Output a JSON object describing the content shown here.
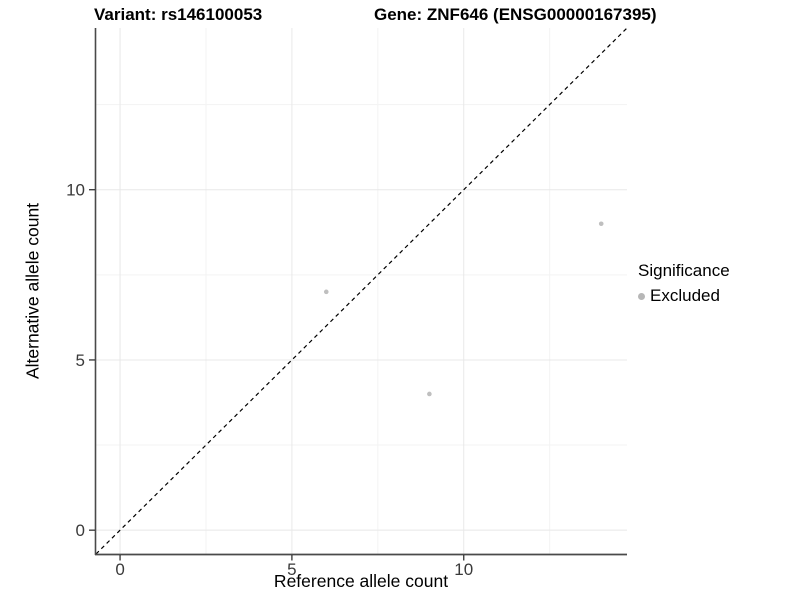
{
  "chart_data": {
    "type": "scatter",
    "title_left": "Variant: rs146100053",
    "title_right": "Gene: ZNF646 (ENSG00000167395)",
    "xlabel": "Reference allele count",
    "ylabel": "Alternative allele count",
    "xlim": [
      -0.7,
      14.75
    ],
    "ylim": [
      -0.7,
      14.75
    ],
    "x_major_ticks": [
      0,
      5,
      10
    ],
    "y_major_ticks": [
      0,
      5,
      10
    ],
    "x_minor_ticks": [
      2.5,
      7.5,
      12.5
    ],
    "y_minor_ticks": [
      2.5,
      7.5,
      12.5
    ],
    "grid": true,
    "legend_position": "right",
    "legend": {
      "title": "Significance",
      "items": [
        {
          "label": "Excluded",
          "color": "#b7b7b7"
        }
      ]
    },
    "series": [
      {
        "name": "Excluded",
        "color": "#bfbfbf",
        "point_radius": 2.3,
        "points": [
          {
            "x": 6,
            "y": 7
          },
          {
            "x": 9,
            "y": 4
          },
          {
            "x": 14,
            "y": 9
          }
        ]
      }
    ],
    "identity_line": {
      "style": "dashed",
      "slope": 1,
      "intercept": 0,
      "color": "#000000"
    }
  },
  "colors": {
    "background": "#ffffff",
    "grid_major": "#e8e8e8",
    "grid_minor": "#f3f3f3",
    "axis_line": "#4a4a4a",
    "tick_mark": "#333333",
    "tick_label": "#3a3a3a"
  }
}
